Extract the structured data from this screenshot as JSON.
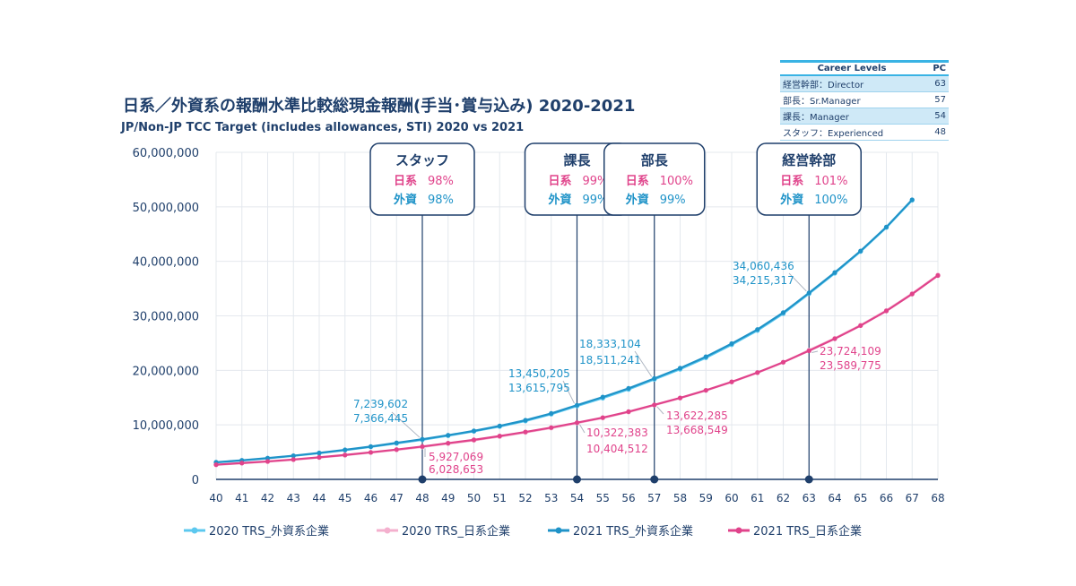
{
  "header": {
    "title": "日系／外資系の報酬水準比較総現金報酬(手当･賞与込み) 2020-2021",
    "subtitle": "JP/Non-JP TCC Target (includes allowances, STI) 2020 vs 2021"
  },
  "career_levels": {
    "header_level": "Career Levels",
    "header_pc": "PC",
    "rows": [
      {
        "label": "経営幹部：Director",
        "pc": "63"
      },
      {
        "label": "部長：Sr.Manager",
        "pc": "57"
      },
      {
        "label": "課長：Manager",
        "pc": "54"
      },
      {
        "label": "スタッフ：Experienced",
        "pc": "48"
      }
    ]
  },
  "colors": {
    "ext2020": "#5cc8ef",
    "jp2020": "#f4b0ce",
    "ext2021": "#1f93c8",
    "jp2021": "#e0438b",
    "navy": "#1f3f6b"
  },
  "chart_data": {
    "type": "line",
    "x": [
      40,
      41,
      42,
      43,
      44,
      45,
      46,
      47,
      48,
      49,
      50,
      51,
      52,
      53,
      54,
      55,
      56,
      57,
      58,
      59,
      60,
      61,
      62,
      63,
      64,
      65,
      66,
      67,
      68
    ],
    "xlim": [
      40,
      68
    ],
    "ylim": [
      0,
      60000000
    ],
    "yticks": [
      "0",
      "10,000,000",
      "20,000,000",
      "30,000,000",
      "40,000,000",
      "50,000,000",
      "60,000,000"
    ],
    "grid": true,
    "legend": "bottom",
    "series": [
      {
        "name": "2020 TRS_外資系企業",
        "key": "ext2020",
        "values": [
          3100000,
          3450000,
          3850000,
          4300000,
          4800000,
          5350000,
          5950000,
          6600000,
          7239602,
          8000000,
          8800000,
          9700000,
          10700000,
          11950000,
          13450205,
          14900000,
          16500000,
          18333104,
          20200000,
          22300000,
          24700000,
          27300000,
          30400000,
          34060436,
          37800000,
          41800000,
          46200000,
          51200000,
          null
        ]
      },
      {
        "name": "2020 TRS_日系企業",
        "key": "jp2020",
        "values": [
          2650000,
          2950000,
          3250000,
          3600000,
          4000000,
          4420000,
          4900000,
          5400000,
          5927069,
          6550000,
          7150000,
          7850000,
          8600000,
          9400000,
          10322383,
          11250000,
          12350000,
          13622285,
          14900000,
          16300000,
          17850000,
          19550000,
          21450000,
          23724109,
          25900000,
          28300000,
          31000000,
          34100000,
          37500000
        ]
      },
      {
        "name": "2021 TRS_外資系企業",
        "key": "ext2021",
        "values": [
          3150000,
          3500000,
          3900000,
          4350000,
          4850000,
          5420000,
          6020000,
          6700000,
          7366445,
          8100000,
          8900000,
          9800000,
          10850000,
          12100000,
          13615795,
          15100000,
          16700000,
          18511241,
          20400000,
          22500000,
          24900000,
          27500000,
          30600000,
          34215317,
          37950000,
          41900000,
          46300000,
          51300000,
          null
        ]
      },
      {
        "name": "2021 TRS_日系企業",
        "key": "jp2021",
        "values": [
          2700000,
          3000000,
          3300000,
          3650000,
          4050000,
          4480000,
          4960000,
          5480000,
          6028653,
          6650000,
          7250000,
          7950000,
          8700000,
          9500000,
          10404512,
          11330000,
          12430000,
          13668549,
          14950000,
          16350000,
          17900000,
          19600000,
          21500000,
          23589775,
          25800000,
          28200000,
          30900000,
          34000000,
          37400000
        ]
      }
    ],
    "annotations": [
      {
        "x": 48,
        "title": "スタッフ",
        "jp_label": "日系",
        "jp_value": "98%",
        "ext_label": "外資",
        "ext_value": "98%",
        "ext2020_label": "7,239,602",
        "ext2021_label": "7,366,445",
        "jp2020_label": "5,927,069",
        "jp2021_label": "6,028,653"
      },
      {
        "x": 54,
        "title": "課長",
        "jp_label": "日系",
        "jp_value": "99%",
        "ext_label": "外資",
        "ext_value": "99%",
        "ext2020_label": "13,450,205",
        "ext2021_label": "13,615,795",
        "jp2020_label": "10,322,383",
        "jp2021_label": "10,404,512"
      },
      {
        "x": 57,
        "title": "部長",
        "jp_label": "日系",
        "jp_value": "100%",
        "ext_label": "外資",
        "ext_value": "99%",
        "ext2020_label": "18,333,104",
        "ext2021_label": "18,511,241",
        "jp2020_label": "13,622,285",
        "jp2021_label": "13,668,549"
      },
      {
        "x": 63,
        "title": "経営幹部",
        "jp_label": "日系",
        "jp_value": "101%",
        "ext_label": "外資",
        "ext_value": "100%",
        "ext2020_label": "34,060,436",
        "ext2021_label": "34,215,317",
        "jp2020_label": "23,724,109",
        "jp2021_label": "23,589,775"
      }
    ]
  }
}
